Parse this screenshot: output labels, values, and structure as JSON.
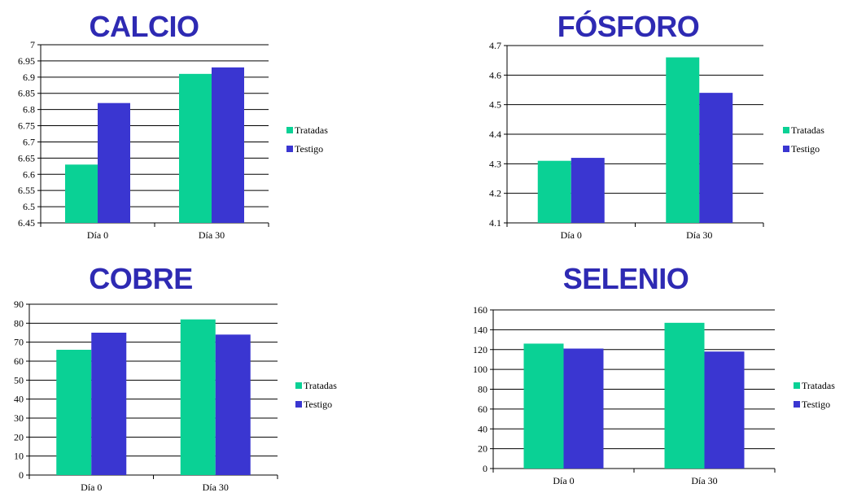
{
  "colors": {
    "title": "#2e2ab3",
    "tratadas": "#0ad195",
    "testigo": "#3a36d1",
    "axis": "#000000"
  },
  "chart_data": [
    {
      "type": "bar",
      "title": "CALCIO",
      "categories": [
        "Día 0",
        "Día 30"
      ],
      "series": [
        {
          "name": "Tratadas",
          "values": [
            6.63,
            6.91
          ]
        },
        {
          "name": "Testigo",
          "values": [
            6.82,
            6.93
          ]
        }
      ],
      "ylim": [
        6.45,
        7
      ],
      "yticks": [
        "6.45",
        "6.5",
        "6.55",
        "6.6",
        "6.65",
        "6.7",
        "6.75",
        "6.8",
        "6.85",
        "6.9",
        "6.95",
        "7"
      ],
      "grid": true,
      "legend": "right"
    },
    {
      "type": "bar",
      "title": "FÓSFORO",
      "categories": [
        "Día 0",
        "Día 30"
      ],
      "series": [
        {
          "name": "Tratadas",
          "values": [
            4.31,
            4.66
          ]
        },
        {
          "name": "Testigo",
          "values": [
            4.32,
            4.54
          ]
        }
      ],
      "ylim": [
        4.1,
        4.7
      ],
      "yticks": [
        "4.1",
        "4.2",
        "4.3",
        "4.4",
        "4.5",
        "4.6",
        "4.7"
      ],
      "grid": true,
      "legend": "right"
    },
    {
      "type": "bar",
      "title": "COBRE",
      "categories": [
        "Día 0",
        "Día 30"
      ],
      "series": [
        {
          "name": "Tratadas",
          "values": [
            66,
            82
          ]
        },
        {
          "name": "Testigo",
          "values": [
            75,
            74
          ]
        }
      ],
      "ylim": [
        0,
        90
      ],
      "yticks": [
        "0",
        "10",
        "20",
        "30",
        "40",
        "50",
        "60",
        "70",
        "80",
        "90"
      ],
      "grid": true,
      "legend": "right"
    },
    {
      "type": "bar",
      "title": "SELENIO",
      "categories": [
        "Día 0",
        "Día 30"
      ],
      "series": [
        {
          "name": "Tratadas",
          "values": [
            126,
            147
          ]
        },
        {
          "name": "Testigo",
          "values": [
            121,
            118
          ]
        }
      ],
      "ylim": [
        0,
        160
      ],
      "yticks": [
        "0",
        "20",
        "40",
        "60",
        "80",
        "100",
        "120",
        "140",
        "160"
      ],
      "grid": true,
      "legend": "right"
    }
  ]
}
